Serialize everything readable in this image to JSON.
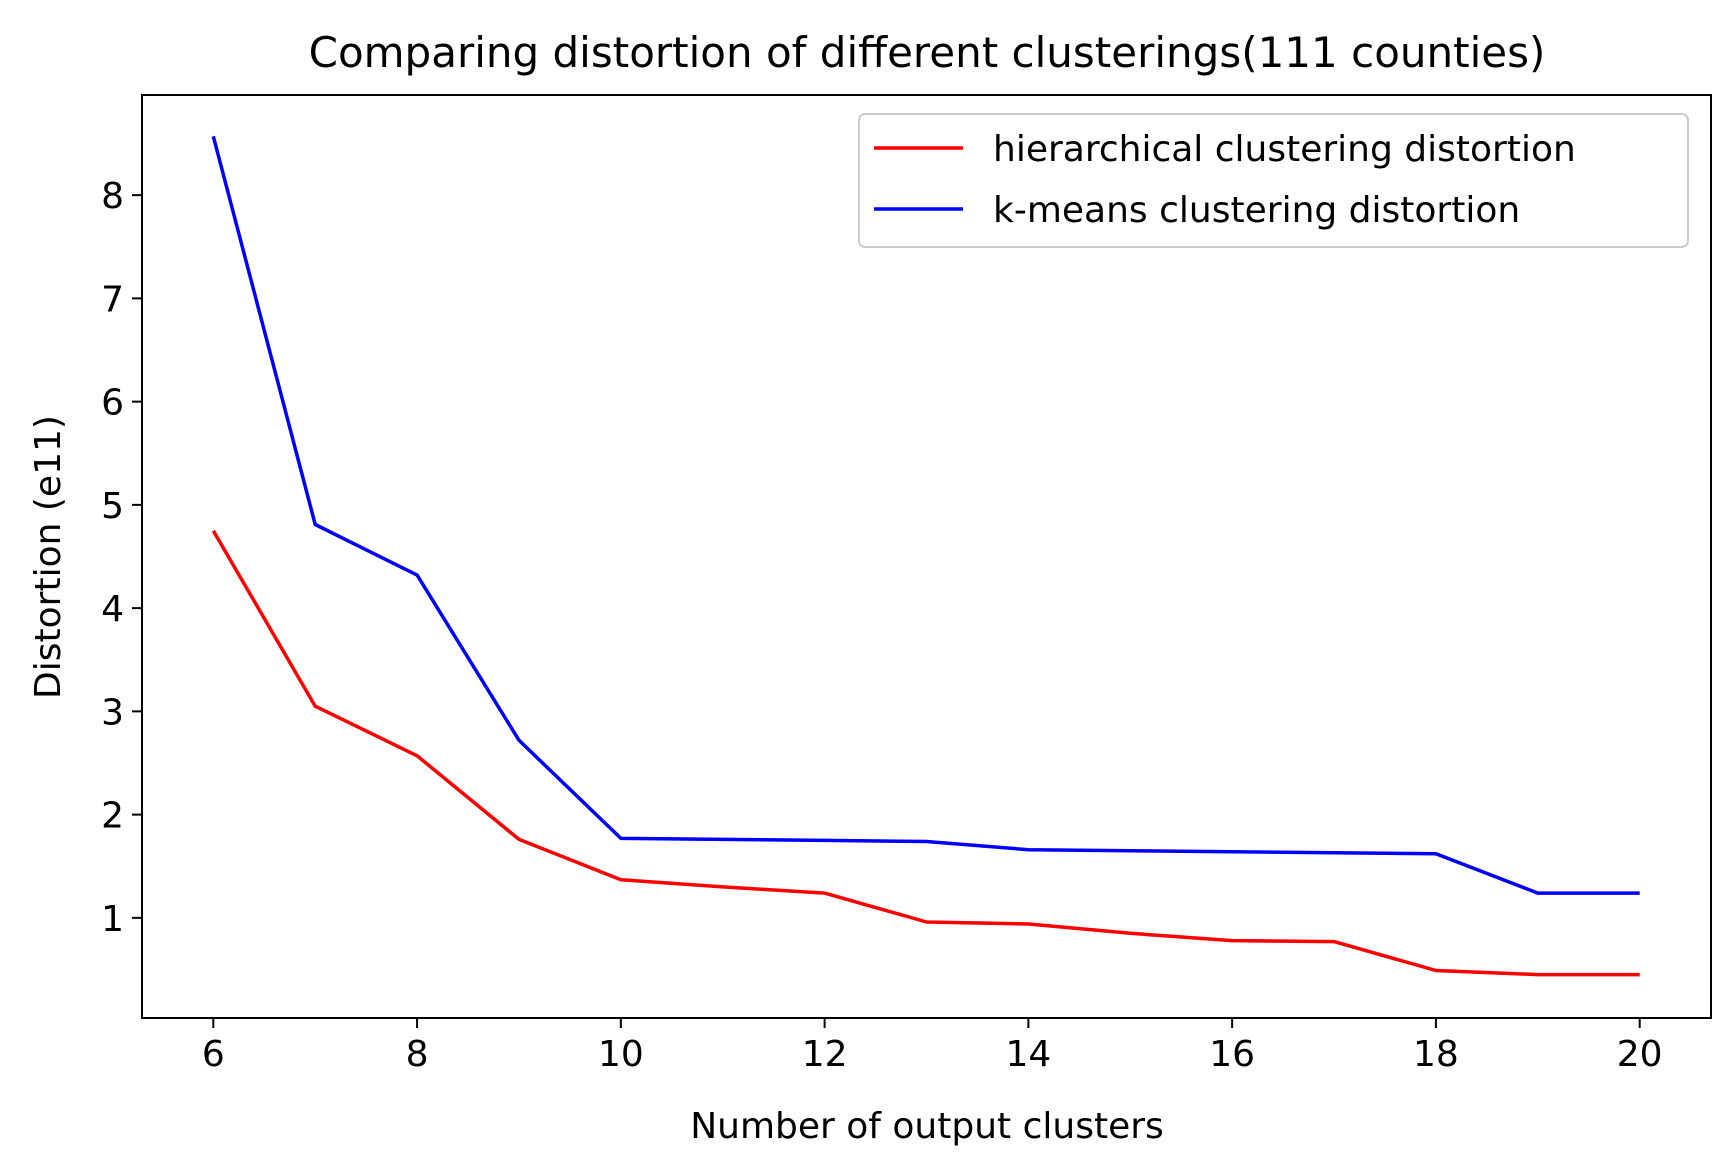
{
  "chart_data": {
    "type": "line",
    "title": "Comparing distortion of different clusterings(111 counties)",
    "xlabel": "Number of output clusters",
    "ylabel": "Distortion (e11)",
    "x": [
      6,
      7,
      8,
      9,
      10,
      11,
      12,
      13,
      14,
      15,
      16,
      17,
      18,
      19,
      20
    ],
    "xticks": [
      6,
      8,
      10,
      12,
      14,
      16,
      18,
      20
    ],
    "yticks": [
      1,
      2,
      3,
      4,
      5,
      6,
      7,
      8
    ],
    "xlim": [
      5.3,
      20.7
    ],
    "ylim": [
      0.03,
      8.97
    ],
    "grid": false,
    "legend_position": "top-right",
    "series": [
      {
        "name": "hierarchical clustering distortion",
        "color": "#ff0000",
        "values": [
          4.75,
          3.05,
          2.57,
          1.76,
          1.37,
          1.3,
          1.24,
          0.96,
          0.94,
          0.85,
          0.78,
          0.77,
          0.49,
          0.45,
          0.45
        ]
      },
      {
        "name": "k-means clustering distortion",
        "color": "#0000ff",
        "values": [
          8.57,
          4.81,
          4.32,
          2.72,
          1.77,
          1.76,
          1.75,
          1.74,
          1.66,
          1.65,
          1.64,
          1.63,
          1.62,
          1.24,
          1.24
        ]
      }
    ]
  }
}
